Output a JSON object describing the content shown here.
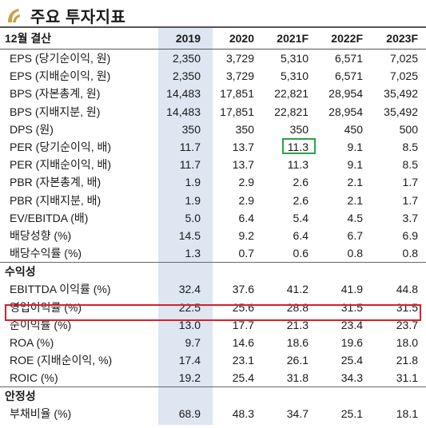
{
  "title": "주요 투자지표",
  "header": {
    "label": "12월 결산",
    "years": [
      "2019",
      "2020",
      "2021F",
      "2022F",
      "2023F"
    ]
  },
  "groups": [
    {
      "section": "",
      "rows": [
        {
          "label": "EPS (당기순이익, 원)",
          "values": [
            "2,350",
            "3,729",
            "5,310",
            "6,571",
            "7,025"
          ]
        },
        {
          "label": "EPS (지배순이익, 원)",
          "values": [
            "2,350",
            "3,729",
            "5,310",
            "6,571",
            "7,025"
          ]
        },
        {
          "label": "BPS (자본총계, 원)",
          "values": [
            "14,483",
            "17,851",
            "22,821",
            "28,954",
            "35,492"
          ]
        },
        {
          "label": "BPS (지배지분, 원)",
          "values": [
            "14,483",
            "17,851",
            "22,821",
            "28,954",
            "35,492"
          ]
        },
        {
          "label": "DPS (원)",
          "values": [
            "350",
            "350",
            "350",
            "450",
            "500"
          ]
        },
        {
          "label": "PER (당기순이익, 배)",
          "values": [
            "11.7",
            "13.7",
            "11.3",
            "9.1",
            "8.5"
          ]
        },
        {
          "label": "PER (지배순이익, 배)",
          "values": [
            "11.7",
            "13.7",
            "11.3",
            "9.1",
            "8.5"
          ]
        },
        {
          "label": "PBR (자본총계, 배)",
          "values": [
            "1.9",
            "2.9",
            "2.6",
            "2.1",
            "1.7"
          ]
        },
        {
          "label": "PBR (지배지분, 배)",
          "values": [
            "1.9",
            "2.9",
            "2.6",
            "2.1",
            "1.7"
          ]
        },
        {
          "label": "EV/EBITDA (배)",
          "values": [
            "5.0",
            "6.4",
            "5.4",
            "4.5",
            "3.7"
          ]
        },
        {
          "label": "배당성향 (%)",
          "values": [
            "14.5",
            "9.2",
            "6.4",
            "6.7",
            "6.9"
          ]
        },
        {
          "label": "배당수익률 (%)",
          "values": [
            "1.3",
            "0.7",
            "0.6",
            "0.8",
            "0.8"
          ]
        }
      ]
    },
    {
      "section": "수익성",
      "rows": [
        {
          "label": "EBITTDA 이익률 (%)",
          "values": [
            "32.4",
            "37.6",
            "41.2",
            "41.9",
            "44.8"
          ]
        },
        {
          "label": "영업이익률 (%)",
          "values": [
            "22.5",
            "25.6",
            "28.8",
            "31.5",
            "31.5"
          ]
        },
        {
          "label": "순이익률 (%)",
          "values": [
            "13.0",
            "17.7",
            "21.3",
            "23.4",
            "23.7"
          ]
        },
        {
          "label": "ROA (%)",
          "values": [
            "9.7",
            "14.6",
            "18.6",
            "19.6",
            "18.0"
          ]
        },
        {
          "label": "ROE (지배순이익, %)",
          "values": [
            "17.4",
            "23.1",
            "26.1",
            "25.4",
            "21.8"
          ]
        },
        {
          "label": "ROIC (%)",
          "values": [
            "19.2",
            "25.4",
            "31.8",
            "34.3",
            "31.1"
          ]
        }
      ]
    },
    {
      "section": "안정성",
      "rows": [
        {
          "label": "부채비율 (%)",
          "values": [
            "68.9",
            "48.3",
            "34.7",
            "25.1",
            "18.1"
          ]
        }
      ]
    }
  ],
  "highlight_colors": {
    "red_box": "#d8202a",
    "green_box": "#2aa34a",
    "shade": "#dde6f1"
  }
}
